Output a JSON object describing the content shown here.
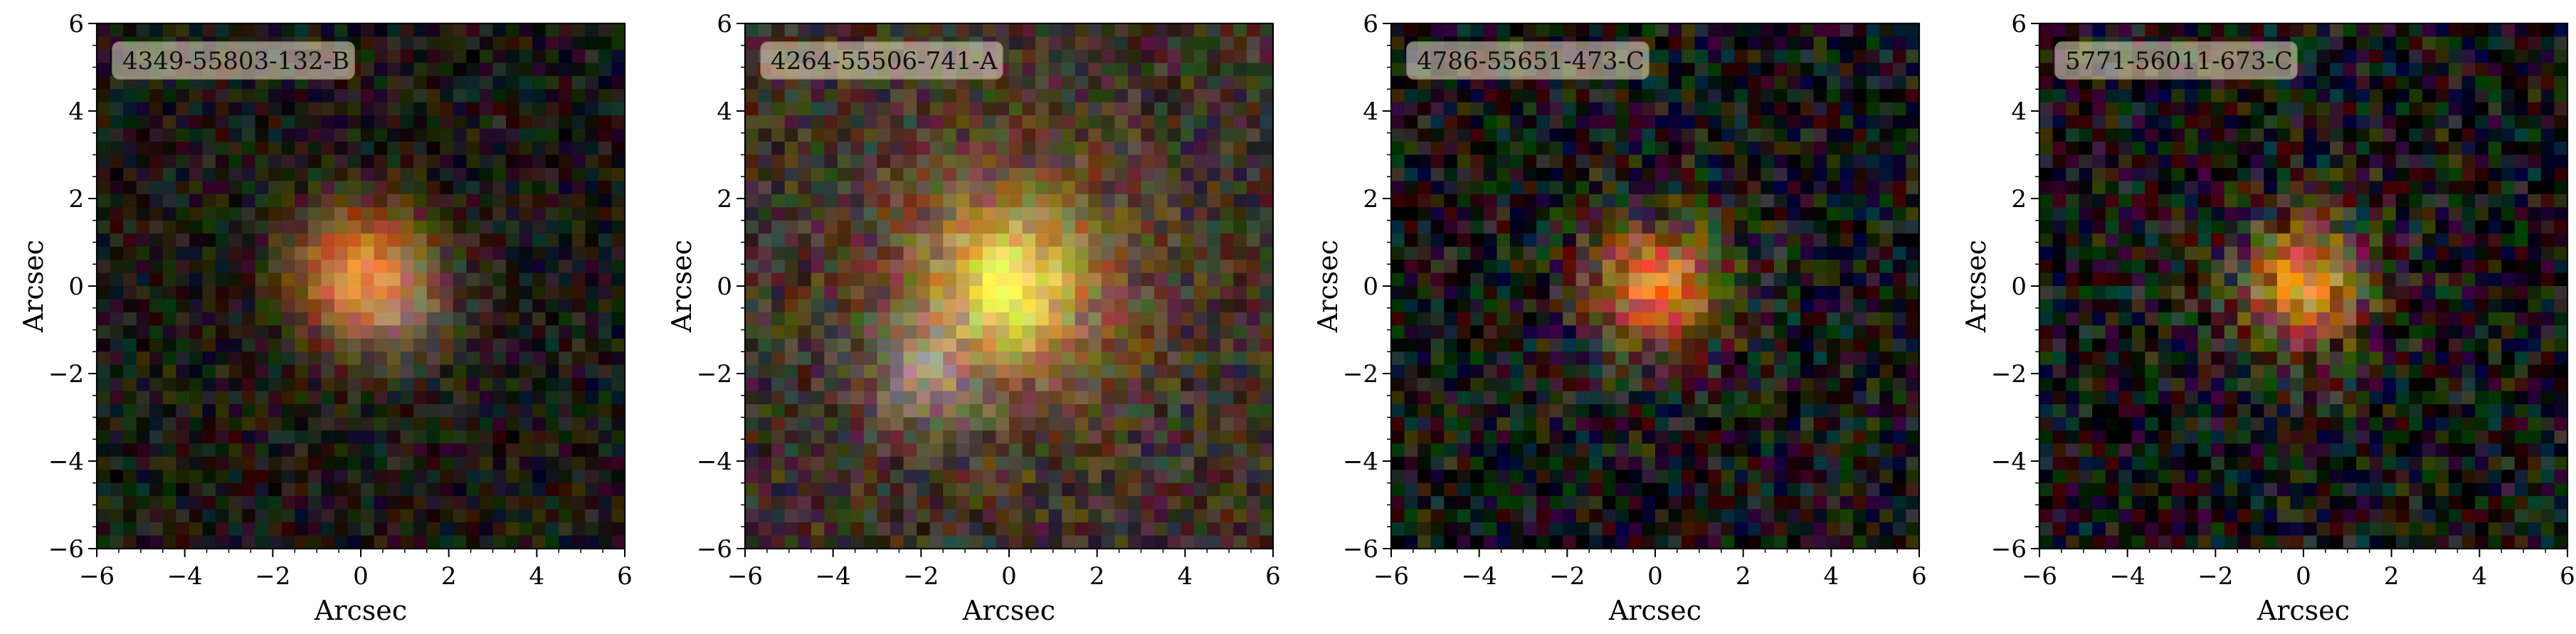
{
  "figure": {
    "panels": [
      {
        "id_label": "4349-55803-132-B",
        "xlabel": "Arcsec",
        "ylabel": "Arcsec",
        "xlim": [
          -6,
          6
        ],
        "ylim": [
          -6,
          6
        ],
        "x_ticks": [
          "−6",
          "−4",
          "−2",
          "0",
          "2",
          "4",
          "6"
        ],
        "y_ticks": [
          "−6",
          "−4",
          "−2",
          "0",
          "2",
          "4",
          "6"
        ],
        "background": "#1c1a14",
        "sources": [
          {
            "x": 0.0,
            "y": 0.3,
            "sigma": 1.1,
            "color": "#ff8a2a",
            "amp": 0.95
          },
          {
            "x": 0.9,
            "y": -0.5,
            "sigma": 0.9,
            "color": "#bdb1a0",
            "amp": 0.45
          }
        ],
        "noise_level": 0.22
      },
      {
        "id_label": "4264-55506-741-A",
        "xlabel": "Arcsec",
        "ylabel": "Arcsec",
        "xlim": [
          -6,
          6
        ],
        "ylim": [
          -6,
          6
        ],
        "x_ticks": [
          "−6",
          "−4",
          "−2",
          "0",
          "2",
          "4",
          "6"
        ],
        "y_ticks": [
          "−6",
          "−4",
          "−2",
          "0",
          "2",
          "4",
          "6"
        ],
        "background": "#3a2f26",
        "sources": [
          {
            "x": 0.0,
            "y": 0.0,
            "sigma": 2.2,
            "color": "#d98a4a",
            "amp": 0.7
          },
          {
            "x": 0.0,
            "y": 0.0,
            "sigma": 1.0,
            "color": "#fff25a",
            "amp": 1.0
          },
          {
            "x": -1.9,
            "y": -1.9,
            "sigma": 0.8,
            "color": "#d7d0cc",
            "amp": 0.55
          }
        ],
        "noise_level": 0.25
      },
      {
        "id_label": "4786-55651-473-C",
        "xlabel": "Arcsec",
        "ylabel": "Arcsec",
        "xlim": [
          -6,
          6
        ],
        "ylim": [
          -6,
          6
        ],
        "x_ticks": [
          "−6",
          "−4",
          "−2",
          "0",
          "2",
          "4",
          "6"
        ],
        "y_ticks": [
          "−6",
          "−4",
          "−2",
          "0",
          "2",
          "4",
          "6"
        ],
        "background": "#141414",
        "sources": [
          {
            "x": 0.0,
            "y": 0.0,
            "sigma": 1.6,
            "color": "#7a6a40",
            "amp": 0.5
          },
          {
            "x": 0.0,
            "y": 0.0,
            "sigma": 0.85,
            "color": "#ff7a2a",
            "amp": 0.95
          }
        ],
        "noise_level": 0.35
      },
      {
        "id_label": "5771-56011-673-C",
        "xlabel": "Arcsec",
        "ylabel": "Arcsec",
        "xlim": [
          -6,
          6
        ],
        "ylim": [
          -6,
          6
        ],
        "x_ticks": [
          "−6",
          "−4",
          "−2",
          "0",
          "2",
          "4",
          "6"
        ],
        "y_ticks": [
          "−6",
          "−4",
          "−2",
          "0",
          "2",
          "4",
          "6"
        ],
        "background": "#121212",
        "sources": [
          {
            "x": 0.0,
            "y": 0.0,
            "sigma": 1.5,
            "color": "#8a6a3a",
            "amp": 0.5
          },
          {
            "x": 0.0,
            "y": 0.0,
            "sigma": 0.8,
            "color": "#ff9a30",
            "amp": 0.9
          }
        ],
        "noise_level": 0.38
      }
    ]
  }
}
